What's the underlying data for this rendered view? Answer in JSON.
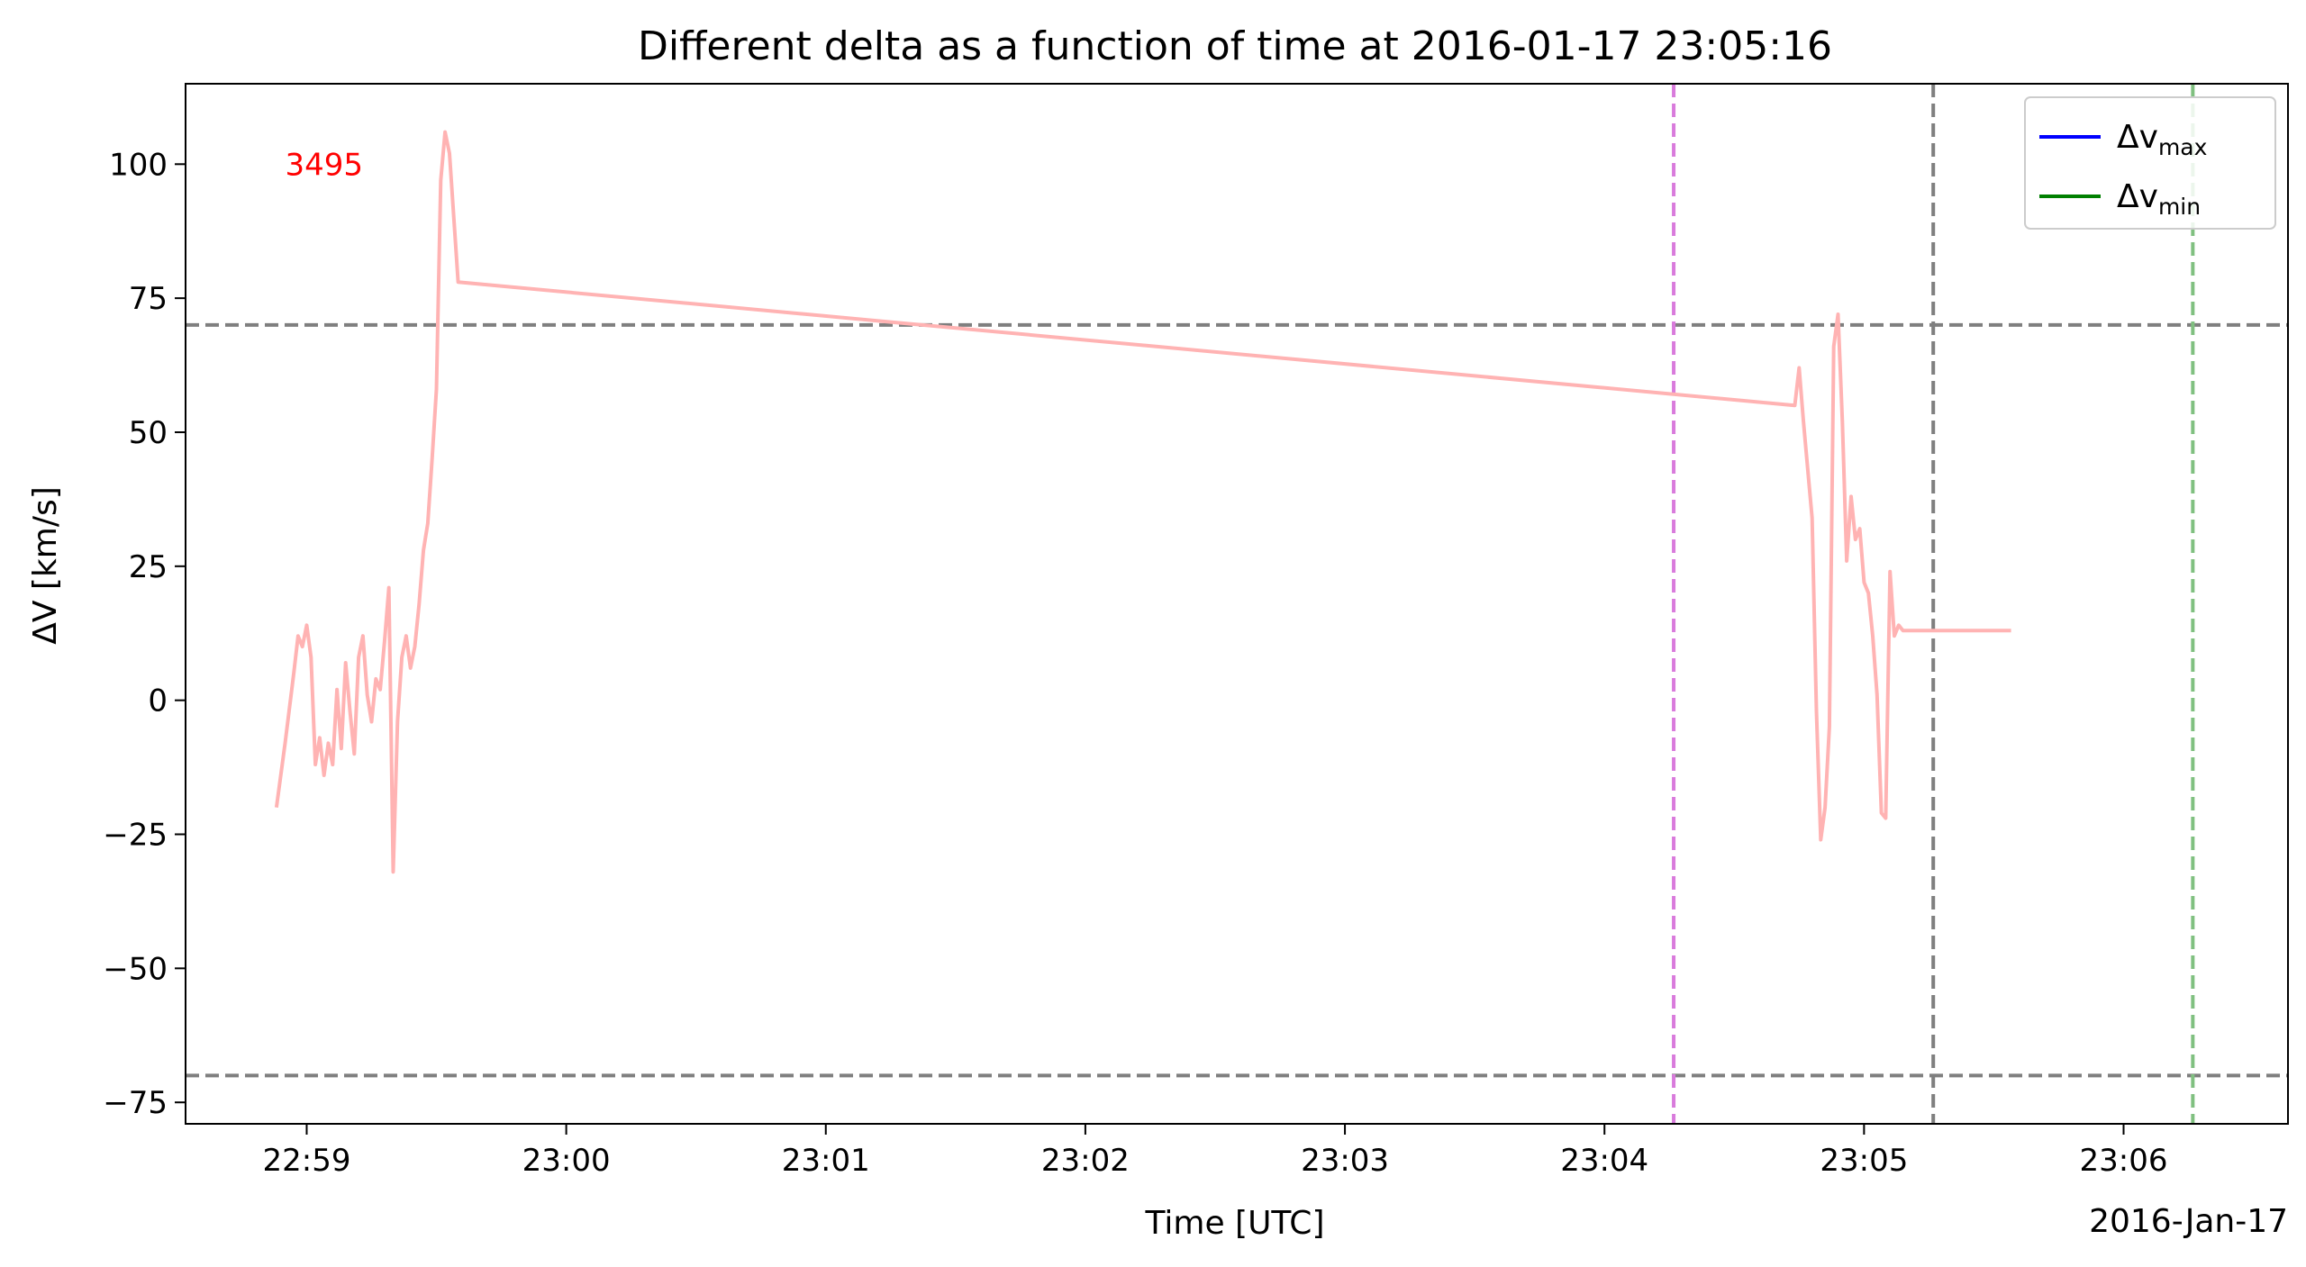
{
  "chart_data": {
    "type": "line",
    "title": "Different delta as a function of time at 2016-01-17 23:05:16",
    "xlabel": "Time [UTC]",
    "ylabel": "ΔV [km/s]",
    "x_offset_label": "2016-Jan-17",
    "xlim": [
      "22:58:32",
      "23:06:38"
    ],
    "ylim": [
      -79,
      115
    ],
    "x_ticks": [
      "22:59",
      "23:00",
      "23:01",
      "23:02",
      "23:03",
      "23:04",
      "23:05",
      "23:06"
    ],
    "y_ticks": [
      100,
      75,
      50,
      25,
      0,
      -25,
      -50,
      -75
    ],
    "y_tick_labels": [
      "100",
      "75",
      "50",
      "25",
      "0",
      "−25",
      "−50",
      "−75"
    ],
    "annotation": {
      "text": "3495",
      "color": "#ff0000",
      "x": "22:58:55",
      "y": 100
    },
    "hlines": [
      {
        "y": 70,
        "color": "#7f7f7f",
        "style": "dashed"
      },
      {
        "y": -70,
        "color": "#7f7f7f",
        "style": "dashed"
      }
    ],
    "vlines": [
      {
        "x": "23:04:16",
        "color": "#d97bdc",
        "style": "dashed"
      },
      {
        "x": "23:05:16",
        "color": "#7f7f7f",
        "style": "dashed"
      },
      {
        "x": "23:06:16",
        "color": "#80c080",
        "style": "dashed"
      }
    ],
    "legend": {
      "position": "top-right",
      "entries": [
        {
          "base": "Δv",
          "sub": "max",
          "color": "#0000ff"
        },
        {
          "base": "Δv",
          "sub": "min",
          "color": "#008000"
        }
      ]
    },
    "series": [
      {
        "color": "#ffb3b3",
        "x": [
          "22:58:53",
          "22:58:55",
          "22:58:57",
          "22:58:58",
          "22:58:59",
          "22:59:00",
          "22:59:01",
          "22:59:02",
          "22:59:03",
          "22:59:04",
          "22:59:05",
          "22:59:06",
          "22:59:07",
          "22:59:08",
          "22:59:09",
          "22:59:10",
          "22:59:11",
          "22:59:12",
          "22:59:13",
          "22:59:14",
          "22:59:15",
          "22:59:16",
          "22:59:17",
          "22:59:18",
          "22:59:19",
          "22:59:20",
          "22:59:21",
          "22:59:22",
          "22:59:23",
          "22:59:24",
          "22:59:25",
          "22:59:26",
          "22:59:27",
          "22:59:28",
          "22:59:29",
          "22:59:30",
          "22:59:31",
          "22:59:32",
          "22:59:33",
          "22:59:35",
          "23:04:44",
          "23:04:45",
          "23:04:46",
          "23:04:47",
          "23:04:48",
          "23:04:49",
          "23:04:50",
          "23:04:51",
          "23:04:52",
          "23:04:53",
          "23:04:54",
          "23:04:55",
          "23:04:56",
          "23:04:57",
          "23:04:58",
          "23:04:59",
          "23:05:00",
          "23:05:01",
          "23:05:02",
          "23:05:03",
          "23:05:04",
          "23:05:05",
          "23:05:06",
          "23:05:07",
          "23:05:08",
          "23:05:09",
          "23:05:10",
          "23:05:11",
          "23:05:12",
          "23:05:13",
          "23:05:14",
          "23:05:15",
          "23:05:16",
          "23:05:17",
          "23:05:18",
          "23:05:19",
          "23:05:20",
          "23:05:21",
          "23:05:22",
          "23:05:23",
          "23:05:24",
          "23:05:25",
          "23:05:26",
          "23:05:27",
          "23:05:28",
          "23:05:29",
          "23:05:30",
          "23:05:31",
          "23:05:32",
          "23:05:33",
          "23:05:34"
        ],
        "y": [
          -20,
          -8,
          5,
          12,
          10,
          14,
          8,
          -12,
          -7,
          -14,
          -8,
          -12,
          2,
          -9,
          7,
          -2,
          -10,
          8,
          12,
          1,
          -4,
          4,
          2,
          11,
          21,
          -32,
          -4,
          8,
          12,
          6,
          10,
          18,
          28,
          33,
          45,
          58,
          97,
          106,
          102,
          78,
          55,
          62,
          52,
          43,
          34,
          -2,
          -26,
          -20,
          -5,
          66,
          72,
          52,
          26,
          38,
          30,
          32,
          22,
          20,
          12,
          1,
          -21,
          -22,
          24,
          12,
          14,
          13,
          13,
          13,
          13,
          13,
          13,
          13,
          13,
          13,
          13,
          13,
          13,
          13,
          13,
          13,
          13,
          13,
          13,
          13,
          13,
          13,
          13,
          13,
          13,
          13,
          13
        ]
      }
    ]
  }
}
